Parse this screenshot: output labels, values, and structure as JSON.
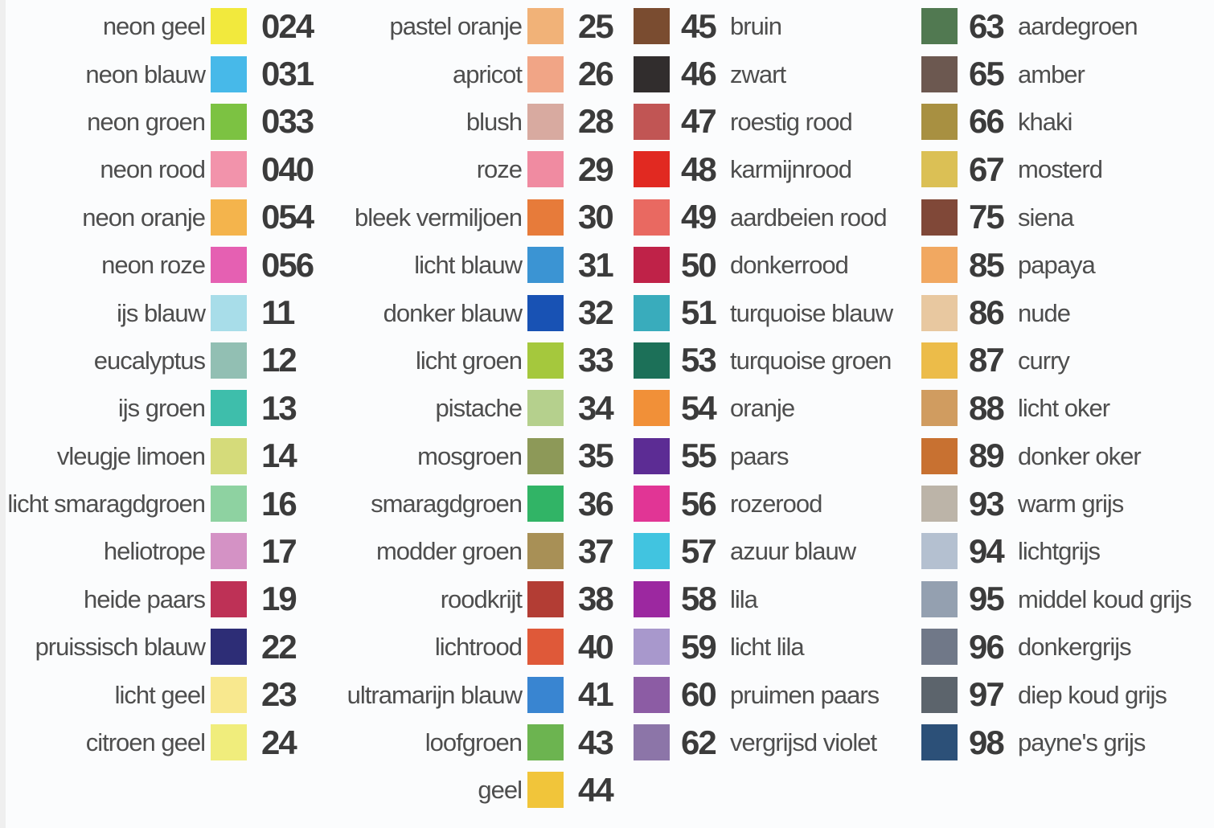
{
  "background_color": "#FBFCFD",
  "chart_data": {
    "type": "table",
    "title": "",
    "description": "Color swatch chart with Dutch color names and color numbers, four columns",
    "columns": [
      {
        "layout": "name-swatch-number",
        "entries": [
          {
            "name": "neon geel",
            "number": "024",
            "color": "#F2E93D"
          },
          {
            "name": "neon blauw",
            "number": "031",
            "color": "#47B9E9"
          },
          {
            "name": "neon groen",
            "number": "033",
            "color": "#7CC242"
          },
          {
            "name": "neon rood",
            "number": "040",
            "color": "#F293AB"
          },
          {
            "name": "neon oranje",
            "number": "054",
            "color": "#F4B44C"
          },
          {
            "name": "neon roze",
            "number": "056",
            "color": "#E560B2"
          },
          {
            "name": "ijs blauw",
            "number": "11",
            "color": "#A8DDE9"
          },
          {
            "name": "eucalyptus",
            "number": "12",
            "color": "#92BFB3"
          },
          {
            "name": "ijs groen",
            "number": "13",
            "color": "#3EBEAB"
          },
          {
            "name": "vleugje limoen",
            "number": "14",
            "color": "#D5DB7A"
          },
          {
            "name": "licht smaragdgroen",
            "number": "16",
            "color": "#8ED2A1"
          },
          {
            "name": "heliotrope",
            "number": "17",
            "color": "#D492C5"
          },
          {
            "name": "heide paars",
            "number": "19",
            "color": "#BE3156"
          },
          {
            "name": "pruissisch blauw",
            "number": "22",
            "color": "#2D2D76"
          },
          {
            "name": "licht geel",
            "number": "23",
            "color": "#F8E88E"
          },
          {
            "name": "citroen geel",
            "number": "24",
            "color": "#F0ED7C"
          }
        ]
      },
      {
        "layout": "name-swatch-number",
        "entries": [
          {
            "name": "pastel oranje",
            "number": "25",
            "color": "#F1B278"
          },
          {
            "name": "apricot",
            "number": "26",
            "color": "#F1A586"
          },
          {
            "name": "blush",
            "number": "28",
            "color": "#D8AAA0"
          },
          {
            "name": "roze",
            "number": "29",
            "color": "#F08BA1"
          },
          {
            "name": "bleek vermiljoen",
            "number": "30",
            "color": "#E77B3A"
          },
          {
            "name": "licht blauw",
            "number": "31",
            "color": "#3B94D3"
          },
          {
            "name": "donker blauw",
            "number": "32",
            "color": "#1852B4"
          },
          {
            "name": "licht groen",
            "number": "33",
            "color": "#A5C83D"
          },
          {
            "name": "pistache",
            "number": "34",
            "color": "#B5D08D"
          },
          {
            "name": "mosgroen",
            "number": "35",
            "color": "#8D9958"
          },
          {
            "name": "smaragdgroen",
            "number": "36",
            "color": "#31B466"
          },
          {
            "name": "modder groen",
            "number": "37",
            "color": "#A89056"
          },
          {
            "name": "roodkrijt",
            "number": "38",
            "color": "#B33D34"
          },
          {
            "name": "lichtrood",
            "number": "40",
            "color": "#DF5939"
          },
          {
            "name": "ultramarijn blauw",
            "number": "41",
            "color": "#3985D1"
          },
          {
            "name": "loofgroen",
            "number": "43",
            "color": "#6CB450"
          },
          {
            "name": "geel",
            "number": "44",
            "color": "#F1C53A"
          }
        ]
      },
      {
        "layout": "swatch-number-name",
        "entries": [
          {
            "number": "45",
            "name": "bruin",
            "color": "#7A4C30"
          },
          {
            "number": "46",
            "name": "zwart",
            "color": "#312D2D"
          },
          {
            "number": "47",
            "name": "roestig rood",
            "color": "#C15554"
          },
          {
            "number": "48",
            "name": "karmijnrood",
            "color": "#E12921"
          },
          {
            "number": "49",
            "name": "aardbeien rood",
            "color": "#E96961"
          },
          {
            "number": "50",
            "name": "donkerrood",
            "color": "#BF2248"
          },
          {
            "number": "51",
            "name": "turquoise blauw",
            "color": "#39ACBC"
          },
          {
            "number": "53",
            "name": "turquoise groen",
            "color": "#1C7058"
          },
          {
            "number": "54",
            "name": "oranje",
            "color": "#F19038"
          },
          {
            "number": "55",
            "name": "paars",
            "color": "#5C2C94"
          },
          {
            "number": "56",
            "name": "rozerood",
            "color": "#E13595"
          },
          {
            "number": "57",
            "name": "azuur blauw",
            "color": "#41C4E0"
          },
          {
            "number": "58",
            "name": "lila",
            "color": "#9C28A0"
          },
          {
            "number": "59",
            "name": "licht lila",
            "color": "#A898CC"
          },
          {
            "number": "60",
            "name": "pruimen paars",
            "color": "#8C5CA4"
          },
          {
            "number": "62",
            "name": "vergrijsd violet",
            "color": "#8C75A8"
          }
        ]
      },
      {
        "layout": "swatch-number-name",
        "entries": [
          {
            "number": "63",
            "name": "aardegroen",
            "color": "#517951"
          },
          {
            "number": "65",
            "name": "amber",
            "color": "#6C5850"
          },
          {
            "number": "66",
            "name": "khaki",
            "color": "#A89041"
          },
          {
            "number": "67",
            "name": "mosterd",
            "color": "#DBC055"
          },
          {
            "number": "75",
            "name": "siena",
            "color": "#804838"
          },
          {
            "number": "85",
            "name": "papaya",
            "color": "#F1A861"
          },
          {
            "number": "86",
            "name": "nude",
            "color": "#E8C8A0"
          },
          {
            "number": "87",
            "name": "curry",
            "color": "#ECBC49"
          },
          {
            "number": "88",
            "name": "licht oker",
            "color": "#D09C60"
          },
          {
            "number": "89",
            "name": "donker oker",
            "color": "#C87131"
          },
          {
            "number": "93",
            "name": "warm grijs",
            "color": "#BCB4A8"
          },
          {
            "number": "94",
            "name": "lichtgrijs",
            "color": "#B4C0D0"
          },
          {
            "number": "95",
            "name": "middel koud grijs",
            "color": "#94A0B0"
          },
          {
            "number": "96",
            "name": "donkergrijs",
            "color": "#707888"
          },
          {
            "number": "97",
            "name": "diep koud grijs",
            "color": "#5C646C"
          },
          {
            "number": "98",
            "name": "payne's grijs",
            "color": "#2C5078"
          }
        ]
      }
    ]
  }
}
